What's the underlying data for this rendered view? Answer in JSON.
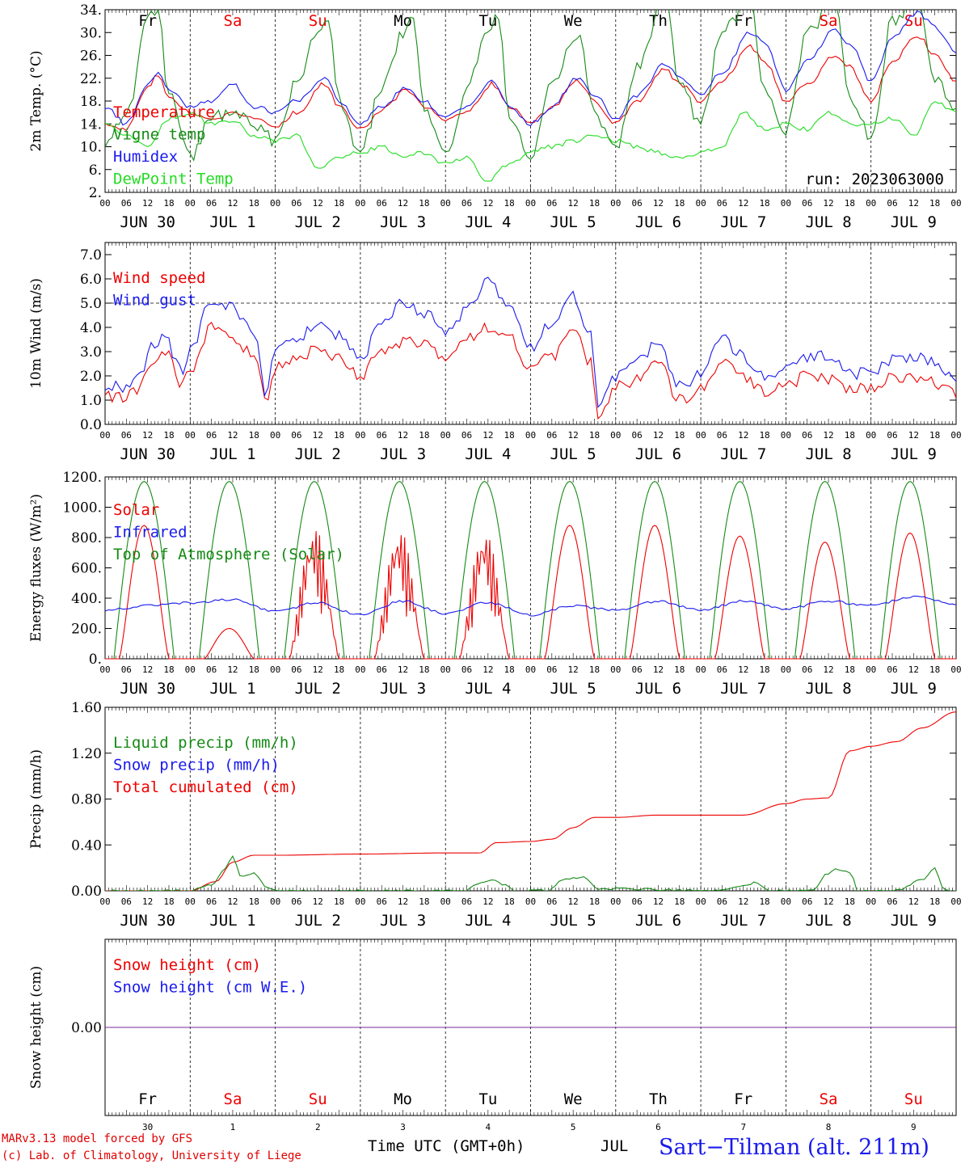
{
  "run_label": "run: 2023063000",
  "footer": {
    "model_line": "MARv3.13 model forced by GFS",
    "credit_line": "(c) Lab. of Climatology, University of Liege",
    "xlabel": "Time UTC (GMT+0h)",
    "month": "JUL",
    "station": "Sart−Tilman (alt. 211m)",
    "day_numbers": [
      "30",
      "1",
      "2",
      "3",
      "4",
      "5",
      "6",
      "7",
      "8",
      "9"
    ]
  },
  "colors": {
    "red": "#ee0000",
    "blue": "#1a1aee",
    "green": "#168a16",
    "light_green": "#22dd22",
    "purple": "#7a2a9a"
  },
  "chart_data": [
    {
      "type": "line",
      "ylabel": "2m Temp. (°C)",
      "ylim": [
        2,
        34
      ],
      "yticks": [
        "34.",
        "30.",
        "26.",
        "22.",
        "18.",
        "14.",
        "10.",
        "6.",
        "2."
      ],
      "grid": "vertical-day",
      "weekday_labels": [
        "Fr",
        "Sa",
        "Su",
        "Mo",
        "Tu",
        "We",
        "Th",
        "Fr",
        "Sa",
        "Su"
      ],
      "weekend_mask": [
        false,
        true,
        true,
        false,
        false,
        false,
        false,
        false,
        true,
        true
      ],
      "x_hour_ticks": [
        "00",
        "06",
        "12",
        "18"
      ],
      "x_dates": [
        "JUN 30",
        "JUL  1",
        "JUL  2",
        "JUL  3",
        "JUL  4",
        "JUL  5",
        "JUL  6",
        "JUL  7",
        "JUL  8",
        "JUL  9"
      ],
      "legend": [
        "Temperature",
        "Vigne temp",
        "Humidex",
        "DewPoint Temp"
      ],
      "series": [
        {
          "name": "Temperature",
          "color": "red",
          "x_day": [
            0,
            0.25,
            0.5,
            0.62,
            0.75,
            1,
            1.25,
            1.5,
            1.75,
            2,
            2.25,
            2.58,
            2.75,
            3,
            3.25,
            3.55,
            3.75,
            4,
            4.25,
            4.55,
            4.75,
            5,
            5.25,
            5.55,
            5.75,
            6,
            6.25,
            6.58,
            6.75,
            7,
            7.25,
            7.58,
            7.75,
            8,
            8.25,
            8.58,
            8.75,
            9,
            9.25,
            9.55,
            9.75,
            10
          ],
          "y": [
            14,
            13,
            20.5,
            22.5,
            19,
            16,
            14.5,
            16,
            15,
            13.5,
            16,
            21,
            17,
            13,
            16.5,
            20,
            17,
            14.5,
            16,
            21,
            17,
            14,
            17,
            21.5,
            18,
            14,
            18,
            23.5,
            21,
            18,
            21.5,
            27.5,
            25,
            18,
            21,
            26,
            24,
            18,
            25,
            29.5,
            26,
            21.5
          ]
        },
        {
          "name": "Vigne temp",
          "color": "green",
          "x_day": [
            0,
            0.25,
            0.5,
            0.62,
            0.75,
            1,
            1.25,
            1.5,
            1.75,
            2,
            2.25,
            2.5,
            2.62,
            2.75,
            3,
            3.25,
            3.5,
            3.62,
            3.75,
            4,
            4.25,
            4.5,
            4.62,
            4.75,
            5,
            5.25,
            5.55,
            5.75,
            6,
            6.25,
            6.58,
            6.75,
            7,
            7.25,
            7.58,
            7.75,
            8,
            8.25,
            8.58,
            8.75,
            9,
            9.25,
            9.55,
            9.75,
            10
          ],
          "y": [
            11,
            15,
            33,
            34,
            19,
            8,
            15,
            16,
            14,
            11,
            21,
            30,
            33,
            18,
            9,
            20,
            30,
            32,
            17,
            8,
            20,
            30,
            33,
            16,
            8,
            21,
            30,
            16,
            9,
            24,
            36,
            21,
            14,
            30,
            36,
            20,
            13,
            30,
            36,
            19,
            12,
            32,
            36,
            22,
            16
          ]
        },
        {
          "name": "Humidex",
          "color": "blue",
          "x_day": [
            0,
            0.25,
            0.5,
            0.62,
            0.75,
            1,
            1.25,
            1.5,
            1.75,
            2,
            2.25,
            2.58,
            2.75,
            3,
            3.25,
            3.55,
            3.75,
            4,
            4.25,
            4.55,
            4.75,
            5,
            5.25,
            5.55,
            5.75,
            6,
            6.25,
            6.58,
            6.75,
            7,
            7.25,
            7.58,
            7.75,
            8,
            8.25,
            8.58,
            8.75,
            9,
            9.25,
            9.55,
            9.75,
            10
          ],
          "y": [
            17,
            14,
            21,
            23,
            20,
            17,
            18,
            21,
            17,
            16,
            18,
            22,
            18,
            14,
            17,
            20.5,
            18,
            15,
            17,
            21.5,
            17,
            14,
            17,
            22,
            19,
            15,
            19,
            24.5,
            22,
            19,
            23,
            30,
            28,
            20,
            25,
            30.5,
            28,
            21.5,
            29,
            33.5,
            31,
            26.5
          ]
        },
        {
          "name": "DewPoint Temp",
          "color": "light_green",
          "x_day": [
            0,
            0.25,
            0.5,
            0.75,
            1,
            1.25,
            1.5,
            1.75,
            2,
            2.25,
            2.5,
            2.75,
            3,
            3.25,
            3.5,
            3.75,
            4,
            4.25,
            4.5,
            4.75,
            5,
            5.25,
            5.5,
            5.75,
            6,
            6.25,
            6.5,
            6.75,
            7,
            7.25,
            7.5,
            7.75,
            8,
            8.25,
            8.5,
            8.75,
            9,
            9.25,
            9.5,
            9.75,
            10
          ],
          "y": [
            14,
            12,
            10,
            15,
            16,
            14,
            14.5,
            12,
            11,
            12,
            6,
            8,
            9,
            10,
            8,
            9,
            7,
            8,
            4,
            7,
            9,
            10,
            11,
            12,
            11,
            10,
            9,
            8,
            9,
            10,
            16,
            13,
            14,
            13,
            16,
            14,
            14,
            15,
            12,
            18,
            16
          ]
        }
      ]
    },
    {
      "type": "line",
      "ylabel": "10m Wind (m/s)",
      "ylim": [
        0,
        7.5
      ],
      "yticks": [
        "7.0",
        "6.0",
        "5.0",
        "4.0",
        "3.0",
        "2.0",
        "1.0",
        "0.0"
      ],
      "ref_line": 5.0,
      "x_dates": [
        "JUN 30",
        "JUL  1",
        "JUL  2",
        "JUL  3",
        "JUL  4",
        "JUL  5",
        "JUL  6",
        "JUL  7",
        "JUL  8",
        "JUL  9"
      ],
      "legend": [
        "Wind speed",
        "Wind gust"
      ],
      "series": [
        {
          "name": "Wind speed",
          "color": "red",
          "x_day": [
            0,
            0.2,
            0.4,
            0.55,
            0.7,
            0.9,
            1,
            1.25,
            1.5,
            1.75,
            1.9,
            2,
            2.25,
            2.5,
            2.75,
            3,
            3.25,
            3.5,
            3.75,
            4,
            4.25,
            4.5,
            4.75,
            5,
            5.25,
            5.5,
            5.7,
            5.8,
            6,
            6.25,
            6.5,
            6.75,
            7,
            7.25,
            7.5,
            7.75,
            8,
            8.25,
            8.5,
            8.75,
            9,
            9.25,
            9.5,
            9.75,
            10
          ],
          "y": [
            1.2,
            1.1,
            1.4,
            2.6,
            3.0,
            1.7,
            2.2,
            4.0,
            3.6,
            2.8,
            0.8,
            2.4,
            2.6,
            3.1,
            2.7,
            2.0,
            3.0,
            3.4,
            3.3,
            2.8,
            3.6,
            4.0,
            3.6,
            2.3,
            2.8,
            3.9,
            2.6,
            0.3,
            1.6,
            1.8,
            2.5,
            1.0,
            1.4,
            2.5,
            2.0,
            1.3,
            1.6,
            2.0,
            1.9,
            1.5,
            1.5,
            1.9,
            2.0,
            1.7,
            1.3
          ]
        },
        {
          "name": "Wind gust",
          "color": "blue",
          "x_day": [
            0,
            0.2,
            0.4,
            0.55,
            0.7,
            0.9,
            1,
            1.25,
            1.5,
            1.75,
            1.9,
            2,
            2.25,
            2.5,
            2.75,
            3,
            3.25,
            3.5,
            3.75,
            4,
            4.25,
            4.5,
            4.75,
            5,
            5.25,
            5.5,
            5.7,
            5.8,
            6,
            6.25,
            6.5,
            6.75,
            7,
            7.25,
            7.5,
            7.75,
            8,
            8.25,
            8.5,
            8.75,
            9,
            9.25,
            9.5,
            9.75,
            10
          ],
          "y": [
            1.6,
            1.5,
            2.0,
            3.3,
            3.6,
            2.2,
            3.0,
            5.1,
            4.8,
            3.8,
            1.2,
            3.1,
            3.6,
            4.0,
            3.7,
            2.6,
            4.2,
            5.0,
            4.6,
            3.8,
            4.7,
            5.9,
            5.0,
            3.2,
            4.2,
            5.3,
            3.8,
            0.6,
            2.0,
            2.6,
            3.4,
            1.6,
            2.0,
            3.5,
            2.8,
            1.9,
            2.2,
            2.8,
            2.8,
            2.1,
            2.1,
            2.7,
            2.8,
            2.6,
            1.7
          ]
        }
      ]
    },
    {
      "type": "line",
      "ylabel": "Energy fluxes (W/m²)",
      "ylim": [
        0,
        1200
      ],
      "yticks": [
        "1200.",
        "1000.",
        "800.",
        "600.",
        "400.",
        "200.",
        "0."
      ],
      "x_dates": [
        "JUN 30",
        "JUL  1",
        "JUL  2",
        "JUL  3",
        "JUL  4",
        "JUL  5",
        "JUL  6",
        "JUL  7",
        "JUL  8",
        "JUL  9"
      ],
      "legend": [
        "Solar",
        "Infrared",
        "Top of Atmosphere (Solar)"
      ],
      "toa_peak": 1170,
      "solar_peaks": [
        880,
        200,
        880,
        870,
        860,
        880,
        880,
        810,
        770,
        830
      ],
      "series": [
        {
          "name": "Infrared",
          "color": "blue",
          "x_day": [
            0,
            0.5,
            1,
            1.5,
            2,
            2.5,
            3,
            3.5,
            4,
            4.5,
            5,
            5.5,
            6,
            6.5,
            7,
            7.5,
            8,
            8.5,
            9,
            9.5,
            10
          ],
          "y": [
            320,
            350,
            370,
            390,
            310,
            370,
            290,
            380,
            300,
            370,
            290,
            350,
            320,
            380,
            320,
            380,
            330,
            380,
            350,
            410,
            360
          ]
        }
      ]
    },
    {
      "type": "line",
      "ylabel": "Precip (mm/h)",
      "ylim": [
        0,
        1.6
      ],
      "yticks": [
        "1.60",
        "1.20",
        "0.80",
        "0.40",
        "0.00"
      ],
      "x_dates": [
        "JUN 30",
        "JUL  1",
        "JUL  2",
        "JUL  3",
        "JUL  4",
        "JUL  5",
        "JUL  6",
        "JUL  7",
        "JUL  8",
        "JUL  9"
      ],
      "legend": [
        "Liquid precip (mm/h)",
        "Snow precip (mm/h)",
        "Total cumulated (cm)"
      ],
      "series": [
        {
          "name": "Total cumulated (cm)",
          "color": "red",
          "x_day": [
            0,
            1,
            1.3,
            1.5,
            1.75,
            2,
            3,
            4,
            4.4,
            4.6,
            5,
            5.25,
            5.5,
            5.75,
            6,
            6.5,
            7,
            7.5,
            8,
            8.25,
            8.5,
            8.75,
            9,
            9.3,
            9.6,
            10
          ],
          "y": [
            0,
            0,
            0.08,
            0.25,
            0.31,
            0.31,
            0.32,
            0.33,
            0.33,
            0.42,
            0.43,
            0.45,
            0.55,
            0.64,
            0.64,
            0.66,
            0.66,
            0.66,
            0.76,
            0.8,
            0.81,
            1.22,
            1.26,
            1.3,
            1.42,
            1.56
          ]
        },
        {
          "name": "Liquid precip (mm/h)",
          "color": "green",
          "x_day": [
            0,
            1,
            1.25,
            1.4,
            1.5,
            1.6,
            1.75,
            1.9,
            2,
            4.2,
            4.4,
            4.55,
            4.7,
            4.8,
            5.2,
            5.4,
            5.6,
            5.8,
            7.2,
            7.5,
            7.65,
            7.8,
            8.3,
            8.5,
            8.6,
            8.75,
            8.85,
            9.3,
            9.6,
            9.75,
            9.85,
            10
          ],
          "y": [
            0,
            0,
            0.05,
            0.18,
            0.3,
            0.12,
            0.16,
            0.02,
            0,
            0,
            0.07,
            0.1,
            0.05,
            0,
            0,
            0.1,
            0.12,
            0.02,
            0,
            0.04,
            0.07,
            0,
            0,
            0.15,
            0.19,
            0.16,
            0,
            0,
            0.1,
            0.2,
            0.02,
            0
          ]
        }
      ]
    },
    {
      "type": "line",
      "ylabel": "Snow height (cm)",
      "ylim": [
        -1,
        1
      ],
      "yticks": [
        "0.00"
      ],
      "legend": [
        "Snow height (cm)",
        "Snow height (cm W.E.)"
      ],
      "series": [
        {
          "name": "Snow height (cm)",
          "color": "purple",
          "x_day": [
            0,
            10
          ],
          "y": [
            0,
            0
          ]
        }
      ]
    }
  ]
}
